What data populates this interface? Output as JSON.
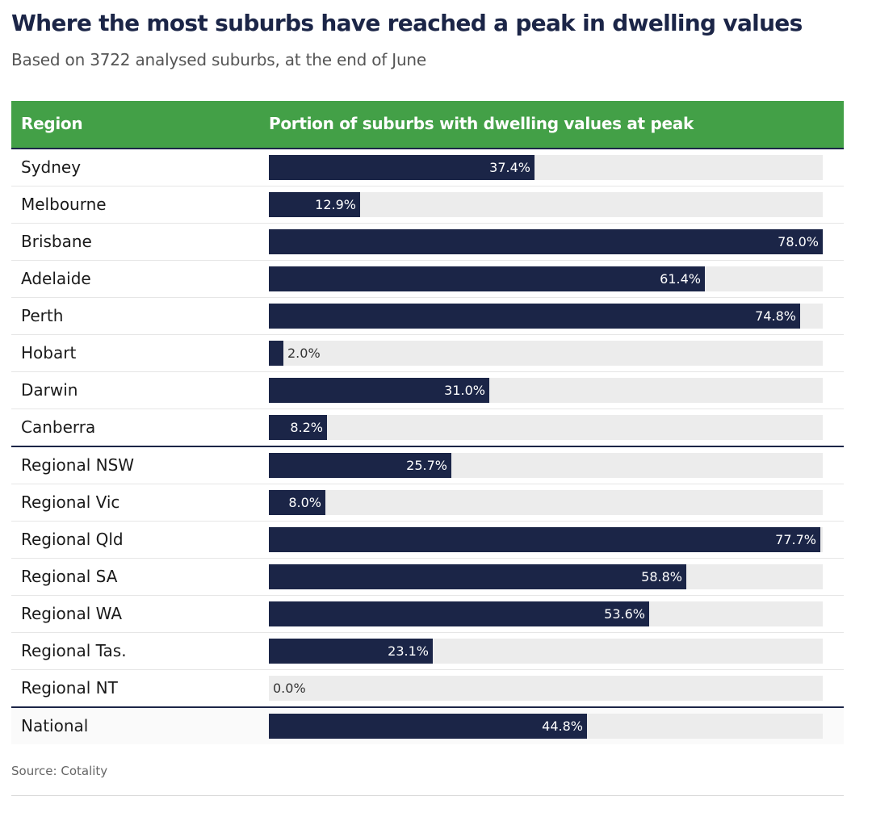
{
  "title": "Where the most suburbs have reached a peak in dwelling values",
  "subtitle": "Based on 3722 analysed suburbs, at the end of June",
  "header": {
    "region": "Region",
    "portion": "Portion of suburbs with dwelling values at peak"
  },
  "source": "Source: Cotality",
  "colors": {
    "header_bg": "#43a047",
    "bar": "#1b2547",
    "track": "#ececec",
    "title": "#1b2547"
  },
  "chart_data": {
    "type": "bar",
    "orientation": "horizontal",
    "categories": [
      "Sydney",
      "Melbourne",
      "Brisbane",
      "Adelaide",
      "Perth",
      "Hobart",
      "Darwin",
      "Canberra",
      "Regional NSW",
      "Regional Vic",
      "Regional Qld",
      "Regional SA",
      "Regional WA",
      "Regional Tas.",
      "Regional NT",
      "National"
    ],
    "values": [
      37.4,
      12.9,
      78.0,
      61.4,
      74.8,
      2.0,
      31.0,
      8.2,
      25.7,
      8.0,
      77.7,
      58.8,
      53.6,
      23.1,
      0.0,
      44.8
    ],
    "value_labels": [
      "37.4%",
      "12.9%",
      "78.0%",
      "61.4%",
      "74.8%",
      "2.0%",
      "31.0%",
      "8.2%",
      "25.7%",
      "8.0%",
      "77.7%",
      "58.8%",
      "53.6%",
      "23.1%",
      "0.0%",
      "44.8%"
    ],
    "xlim": [
      0,
      78
    ],
    "groups": [
      {
        "rows": [
          0,
          7
        ]
      },
      {
        "rows": [
          8,
          14
        ]
      },
      {
        "rows": [
          15,
          15
        ]
      }
    ]
  }
}
